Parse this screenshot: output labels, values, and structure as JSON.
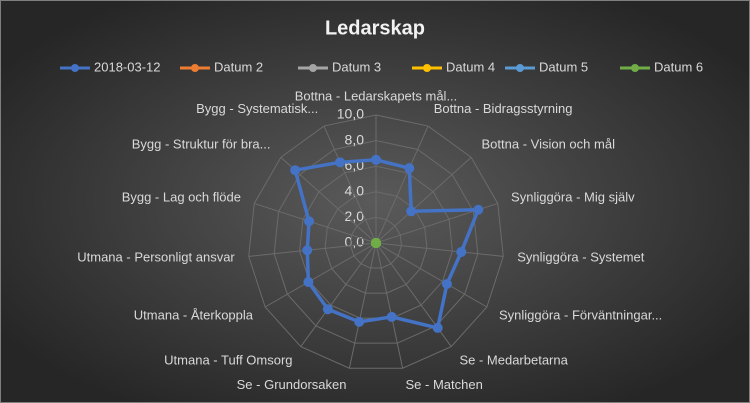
{
  "chart_data": {
    "type": "radar",
    "title": "Ledarskap",
    "categories": [
      "Bottna - Ledarskapets mål...",
      "Bottna - Bidragsstyrning",
      "Bottna - Vision och mål",
      "Synliggöra  - Mig själv",
      "Synliggöra  - Systemet",
      "Synliggöra  - Förväntningar...",
      "Se - Medarbetarna",
      "Se - Matchen",
      "Se - Grundorsaken",
      "Utmana - Tuff Omsorg",
      "Utmana - Återkoppla",
      "Utmana - Personligt ansvar",
      "Bygg - Lag och flöde",
      "Bygg - Struktur för bra...",
      "Bygg - Systematisk..."
    ],
    "series": [
      {
        "name": "2018-03-12",
        "color": "#4472c4",
        "values": [
          6.5,
          6.4,
          3.7,
          8.4,
          6.7,
          6.4,
          8.2,
          5.9,
          6.3,
          6.4,
          6.1,
          5.4,
          5.5,
          8.5,
          6.9
        ]
      },
      {
        "name": "Datum 2",
        "color": "#ed7d31",
        "values": [
          0,
          0,
          0,
          0,
          0,
          0,
          0,
          0,
          0,
          0,
          0,
          0,
          0,
          0,
          0
        ]
      },
      {
        "name": "Datum 3",
        "color": "#a5a5a5",
        "values": [
          0,
          0,
          0,
          0,
          0,
          0,
          0,
          0,
          0,
          0,
          0,
          0,
          0,
          0,
          0
        ]
      },
      {
        "name": "Datum 4",
        "color": "#ffc000",
        "values": [
          0,
          0,
          0,
          0,
          0,
          0,
          0,
          0,
          0,
          0,
          0,
          0,
          0,
          0,
          0
        ]
      },
      {
        "name": "Datum 5",
        "color": "#5b9bd5",
        "values": [
          0,
          0,
          0,
          0,
          0,
          0,
          0,
          0,
          0,
          0,
          0,
          0,
          0,
          0,
          0
        ]
      },
      {
        "name": "Datum 6",
        "color": "#70ad47",
        "values": [
          0,
          0,
          0,
          0,
          0,
          0,
          0,
          0,
          0,
          0,
          0,
          0,
          0,
          0,
          0
        ]
      }
    ],
    "ylim": [
      0,
      10
    ],
    "yticks": [
      {
        "value": 0,
        "label": "0,0"
      },
      {
        "value": 2,
        "label": "2,0"
      },
      {
        "value": 4,
        "label": "4,0"
      },
      {
        "value": 6,
        "label": "6,0"
      },
      {
        "value": 8,
        "label": "8,0"
      },
      {
        "value": 10,
        "label": "10,0"
      }
    ],
    "grid": true,
    "legend": "top"
  }
}
